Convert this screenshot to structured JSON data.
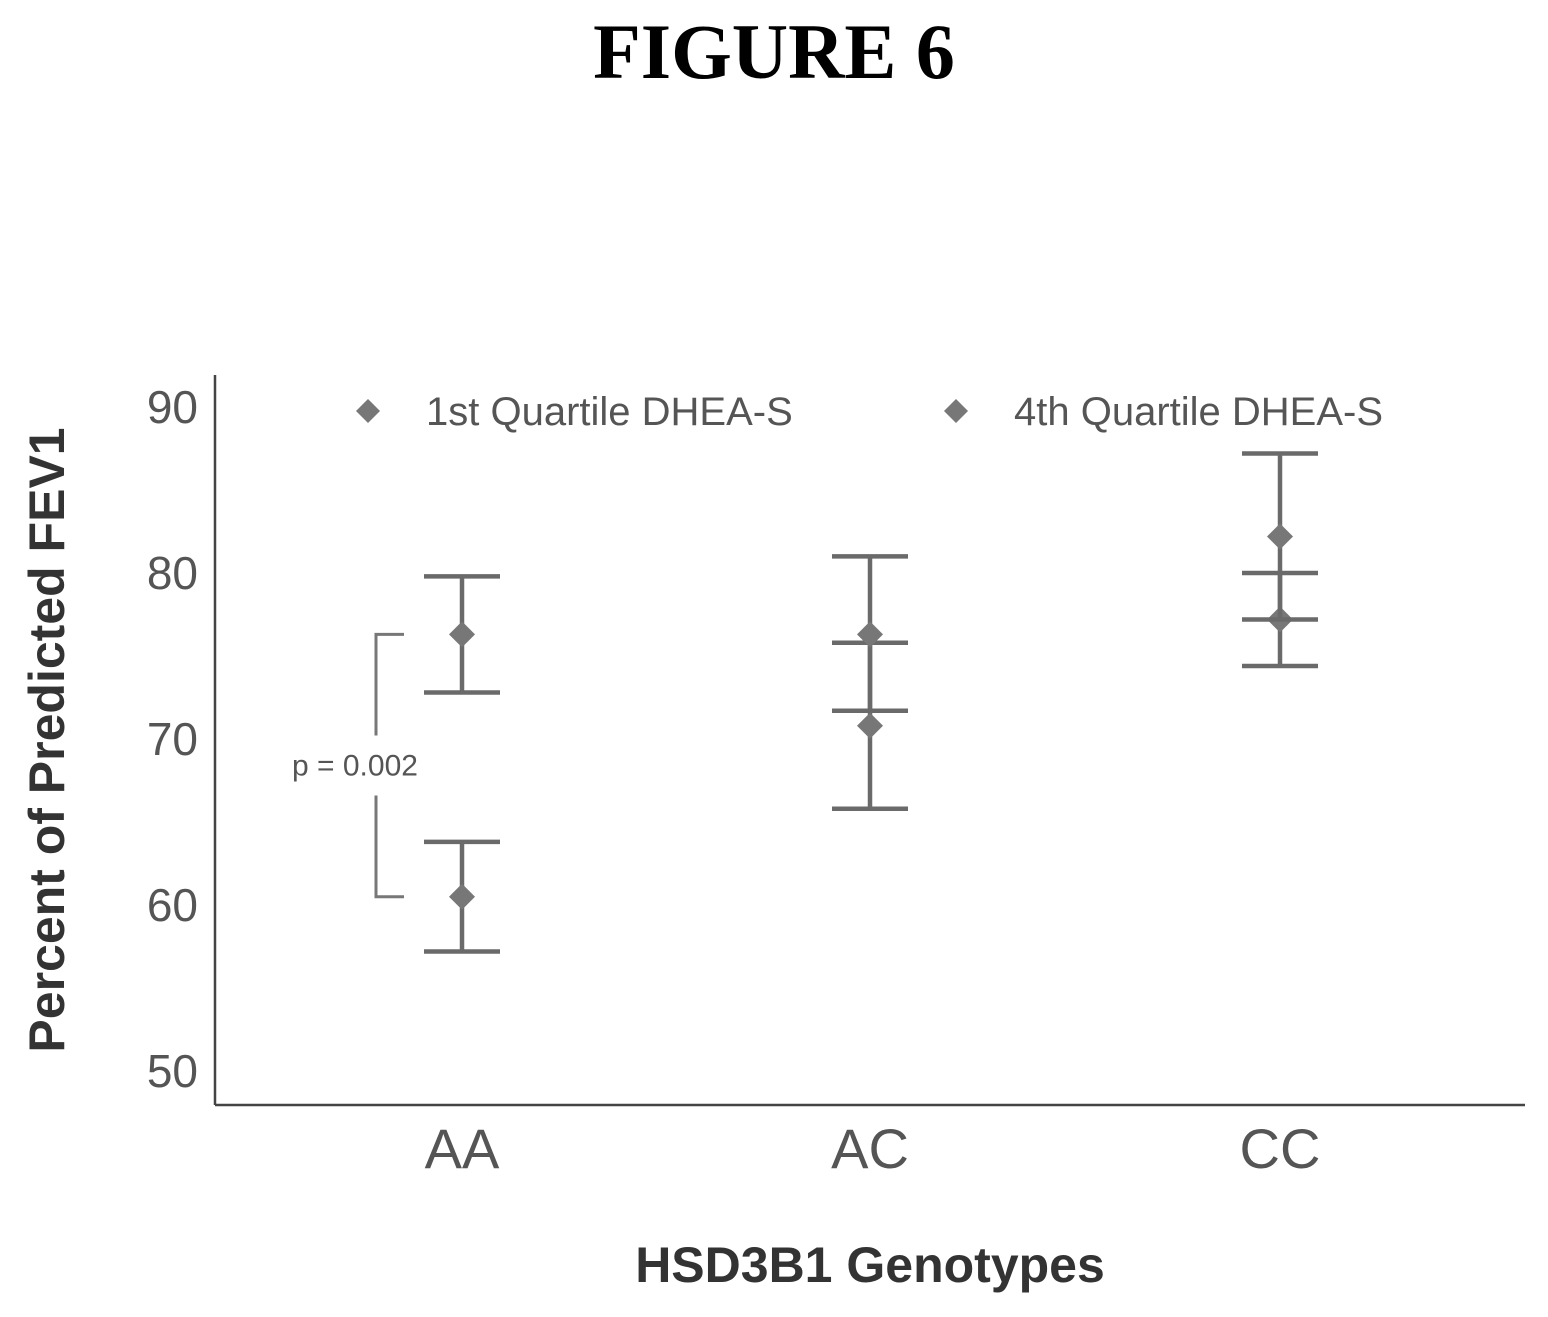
{
  "figure_title": "FIGURE 6",
  "chart_data": {
    "type": "scatter",
    "categories": [
      "AA",
      "AC",
      "CC"
    ],
    "xlabel": "HSD3B1 Genotypes",
    "ylabel": "Percent of Predicted FEV1",
    "ylim": [
      48,
      92
    ],
    "yticks": [
      50,
      60,
      70,
      80,
      90
    ],
    "legend_position": "top",
    "grid": false,
    "series": [
      {
        "name": "1st Quartile DHEA-S",
        "color": "#777777",
        "marker": "diamond",
        "values": [
          60.5,
          70.8,
          77.2
        ],
        "lower": [
          57.2,
          65.8,
          74.4
        ],
        "upper": [
          63.8,
          75.8,
          80.0
        ]
      },
      {
        "name": "4th Quartile DHEA-S",
        "color": "#777777",
        "marker": "diamond",
        "values": [
          76.3,
          76.3,
          82.2
        ],
        "lower": [
          72.8,
          71.7,
          77.2
        ],
        "upper": [
          79.8,
          81.0,
          87.2
        ]
      }
    ],
    "annotations": [
      {
        "text": "p = 0.002",
        "category": "AA",
        "y_from": 60.5,
        "y_to": 76.3
      }
    ]
  }
}
